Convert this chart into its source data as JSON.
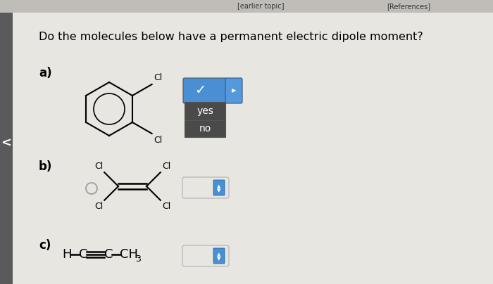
{
  "title": "Do the molecules below have a permanent electric dipole moment?",
  "title_fontsize": 11.5,
  "background_color": "#e8e6e0",
  "label_a": "a)",
  "label_b": "b)",
  "label_c": "c)",
  "label_fontsize": 12,
  "dropdown_yes": "yes",
  "dropdown_no": "no",
  "text_color": "#000000",
  "dropdown_bg_blue": "#4a8fd4",
  "dropdown_bg_dark": "#4a4a4a",
  "checkmark_color": "#ffffff",
  "white": "#ffffff",
  "nav_arrow_bg": "#b0b0b0",
  "top_bar_color": "#555555"
}
